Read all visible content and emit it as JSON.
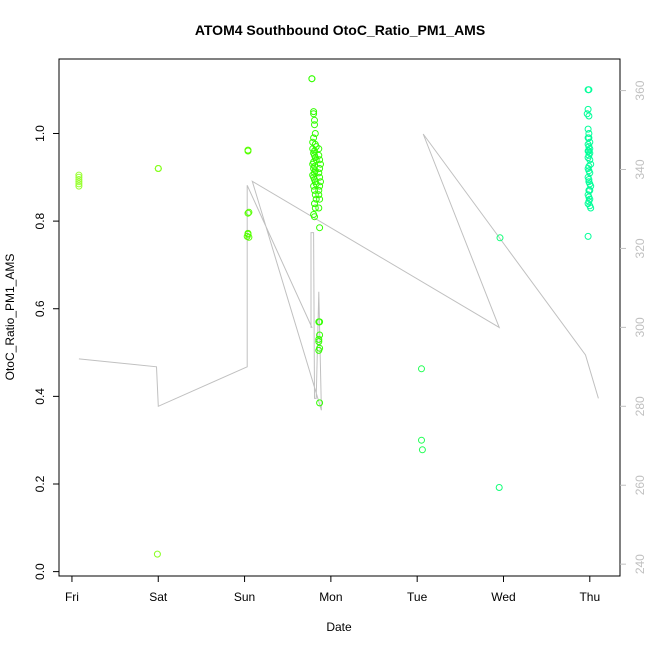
{
  "chart_data": {
    "type": "scatter",
    "title": "ATOM4 Southbound OtoC_Ratio_PM1_AMS",
    "xlabel": "Date",
    "ylabel": "OtoC_Ratio_PM1_AMS",
    "x_ticks": [
      "Fri",
      "Sat",
      "Sun",
      "Mon",
      "Tue",
      "Wed",
      "Thu"
    ],
    "xlim": [
      -0.15,
      6.35
    ],
    "ylim": [
      -0.01,
      1.17
    ],
    "y_ticks": [
      "0.0",
      "0.2",
      "0.4",
      "0.6",
      "0.8",
      "1.0"
    ],
    "y2lim": [
      237,
      368
    ],
    "y2_ticks": [
      "240",
      "260",
      "280",
      "300",
      "320",
      "340",
      "360"
    ],
    "grid": false,
    "scatter_series": {
      "x": [
        0.08,
        0.08,
        0.08,
        0.08,
        0.08,
        0.08,
        1.0,
        1.0,
        1.0,
        0.99,
        2.04,
        2.04,
        2.05,
        2.04,
        2.04,
        2.03,
        2.04,
        2.05,
        2.78,
        2.78,
        2.8,
        2.8,
        2.81,
        2.81,
        2.82,
        2.8,
        2.79,
        2.82,
        2.83,
        2.79,
        2.81,
        2.8,
        2.81,
        2.82,
        2.83,
        2.8,
        2.79,
        2.81,
        2.8,
        2.82,
        2.81,
        2.79,
        2.8,
        2.81,
        2.82,
        2.83,
        2.8,
        2.81,
        2.82,
        2.83,
        2.81,
        2.82,
        2.8,
        2.81,
        2.86,
        2.86,
        2.87,
        2.88,
        2.87,
        2.86,
        2.87,
        2.88,
        2.87,
        2.86,
        2.86,
        2.87,
        2.86,
        2.87,
        2.86,
        2.87,
        2.86,
        2.87,
        2.86,
        2.87,
        2.87,
        2.86,
        4.05,
        4.05,
        4.06,
        4.96,
        4.95,
        5.98,
        5.99,
        5.98,
        5.99,
        5.97,
        5.98,
        5.99,
        5.98,
        6.0,
        5.99,
        5.98,
        6.0,
        5.99,
        5.98,
        6.0,
        6.01,
        5.99,
        5.98,
        5.99,
        6.0,
        5.98,
        5.99,
        6.0,
        6.01,
        5.99,
        5.98,
        5.99,
        6.0,
        5.98,
        6.0,
        5.99,
        6.01,
        5.98,
        5.99,
        6.0,
        6.0,
        5.99,
        5.98,
        5.99
      ],
      "y": [
        0.88,
        0.89,
        0.9,
        0.905,
        0.895,
        0.885,
        0.92,
        0.92,
        0.92,
        0.04,
        0.96,
        0.962,
        0.82,
        0.818,
        0.77,
        0.765,
        0.772,
        0.763,
        1.125,
        1.125,
        1.05,
        1.045,
        1.03,
        1.02,
        1.0,
        0.99,
        0.98,
        0.975,
        0.97,
        0.965,
        0.96,
        0.955,
        0.95,
        0.945,
        0.94,
        0.935,
        0.93,
        0.925,
        0.92,
        0.915,
        0.91,
        0.905,
        0.9,
        0.895,
        0.89,
        0.885,
        0.88,
        0.87,
        0.86,
        0.85,
        0.84,
        0.83,
        0.815,
        0.81,
        0.965,
        0.95,
        0.94,
        0.93,
        0.92,
        0.91,
        0.9,
        0.89,
        0.88,
        0.87,
        0.86,
        0.85,
        0.83,
        0.785,
        0.57,
        0.54,
        0.53,
        0.51,
        0.505,
        0.385,
        0.57,
        0.525,
        0.463,
        0.3,
        0.278,
        0.762,
        0.192,
        1.1,
        1.1,
        1.055,
        1.04,
        1.045,
        1.01,
        1.0,
        0.99,
        0.98,
        0.97,
        0.96,
        0.955,
        0.95,
        0.945,
        0.94,
        0.93,
        0.925,
        0.92,
        0.915,
        0.91,
        0.9,
        0.89,
        0.885,
        0.88,
        0.87,
        0.86,
        0.855,
        0.85,
        0.84,
        0.835,
        0.845,
        0.83,
        0.765,
        0.96,
        0.965,
        0.87,
        0.895,
        0.975,
        0.99
      ],
      "colors": [
        "#99ff33",
        "#99ff33",
        "#99ff33",
        "#99ff33",
        "#99ff33",
        "#99ff33",
        "#88ff22",
        "#88ff22",
        "#88ff22",
        "#88ff22",
        "#55ff00",
        "#55ff00",
        "#55ff00",
        "#55ff00",
        "#55ff00",
        "#55ff00",
        "#55ff00",
        "#55ff00",
        "#33ff00",
        "#33ff00",
        "#33ff00",
        "#33ff00",
        "#33ff00",
        "#33ff00",
        "#33ff00",
        "#33ff00",
        "#33ff00",
        "#33ff00",
        "#33ff00",
        "#33ff00",
        "#33ff00",
        "#33ff00",
        "#33ff00",
        "#33ff00",
        "#33ff00",
        "#33ff00",
        "#33ff00",
        "#33ff00",
        "#33ff00",
        "#33ff00",
        "#33ff00",
        "#33ff00",
        "#33ff00",
        "#33ff00",
        "#33ff00",
        "#33ff00",
        "#33ff00",
        "#33ff00",
        "#33ff00",
        "#33ff00",
        "#33ff00",
        "#33ff00",
        "#33ff00",
        "#33ff00",
        "#33ff00",
        "#33ff00",
        "#33ff00",
        "#33ff00",
        "#33ff00",
        "#33ff00",
        "#33ff00",
        "#33ff00",
        "#33ff00",
        "#33ff00",
        "#33ff00",
        "#33ff00",
        "#33ff00",
        "#33ff00",
        "#33ff00",
        "#33ff00",
        "#33ff00",
        "#33ff00",
        "#33ff00",
        "#33ff00",
        "#33ff00",
        "#33ff00",
        "#22ff55",
        "#22ff55",
        "#22ff55",
        "#11ff77",
        "#11ff77",
        "#00ff99",
        "#00ff99",
        "#00ff99",
        "#00ff99",
        "#00ff99",
        "#00ff99",
        "#00ff99",
        "#00ff99",
        "#00ff99",
        "#00ff99",
        "#00ff99",
        "#00ff99",
        "#00ff99",
        "#00ff99",
        "#00ff99",
        "#00ff99",
        "#00ff99",
        "#00ff99",
        "#00ff99",
        "#00ff99",
        "#00ff99",
        "#00ff99",
        "#00ff99",
        "#00ff99",
        "#00ff99",
        "#00ff99",
        "#00ff99",
        "#00ff99",
        "#00ff99",
        "#00ff99",
        "#00ff99",
        "#00ff99",
        "#00ff99",
        "#00ff99",
        "#00ff99",
        "#00ff99",
        "#00ff99",
        "#00ff99",
        "#00ff99"
      ]
    },
    "line_series": {
      "axis": "right",
      "color": "#c0c0c0",
      "x": [
        0.08,
        0.08,
        0.98,
        0.98,
        1.0,
        1.0,
        2.03,
        2.03,
        2.03,
        2.03,
        2.78,
        2.77,
        2.77,
        2.8,
        2.81,
        2.83,
        2.83,
        2.86,
        2.86,
        2.89,
        2.09,
        4.95,
        4.07,
        4.07,
        5.95,
        5.95,
        5.95,
        6.1,
        6.1,
        6.1
      ],
      "y": [
        292,
        292,
        290,
        290,
        280,
        280,
        290,
        290,
        336,
        336,
        300,
        300,
        324,
        324,
        282,
        282,
        282,
        309,
        309,
        279,
        337,
        300,
        349,
        349,
        293,
        293,
        293,
        282,
        282,
        282
      ]
    }
  }
}
